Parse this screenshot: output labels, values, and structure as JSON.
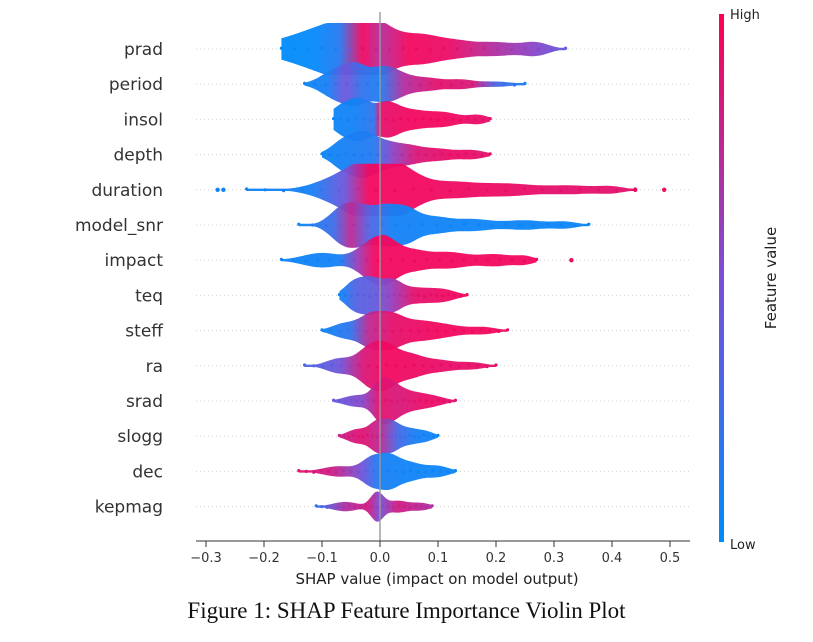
{
  "caption": "Figure 1: SHAP Feature Importance Violin Plot",
  "chart_data": {
    "type": "violin",
    "xlabel": "SHAP value (impact on model output)",
    "xlim": [
      -0.35,
      0.53
    ],
    "xticks": [
      -0.3,
      -0.2,
      -0.1,
      0.0,
      0.1,
      0.2,
      0.3,
      0.4,
      0.5
    ],
    "xtick_labels": [
      "−0.3",
      "−0.2",
      "−0.1",
      "0.0",
      "0.1",
      "0.2",
      "0.3",
      "0.4",
      "0.5"
    ],
    "colorbar": {
      "label": "Feature value",
      "high": "High",
      "low": "Low",
      "high_color": "#ff0052",
      "low_color": "#008bfb"
    },
    "features": [
      {
        "name": "prad",
        "min": -0.17,
        "max": 0.32,
        "outliers": [],
        "blobs": [
          [
            -0.095,
            0.14,
            0.62
          ],
          [
            -0.05,
            0.09,
            0.52
          ],
          [
            -0.02,
            0.05,
            0.4
          ],
          [
            0.03,
            0.08,
            0.3
          ],
          [
            0.08,
            0.05,
            0.3
          ],
          [
            0.13,
            0.05,
            0.24
          ],
          [
            0.2,
            0.07,
            0.26
          ],
          [
            0.27,
            0.04,
            0.22
          ]
        ],
        "colors": [
          [
            -0.17,
            0.0
          ],
          [
            -0.11,
            0.02
          ],
          [
            -0.07,
            0.15
          ],
          [
            -0.03,
            0.95
          ],
          [
            0.0,
            0.72
          ],
          [
            0.05,
            0.95
          ],
          [
            0.12,
            0.92
          ],
          [
            0.2,
            0.7
          ],
          [
            0.27,
            0.55
          ],
          [
            0.32,
            0.4
          ]
        ]
      },
      {
        "name": "period",
        "min": -0.13,
        "max": 0.25,
        "outliers": [],
        "blobs": [
          [
            -0.07,
            0.05,
            0.62
          ],
          [
            -0.04,
            0.03,
            0.4
          ],
          [
            0.0,
            0.04,
            0.52
          ],
          [
            0.03,
            0.04,
            0.32
          ],
          [
            0.08,
            0.05,
            0.24
          ],
          [
            0.14,
            0.04,
            0.16
          ],
          [
            0.2,
            0.05,
            0.1
          ]
        ],
        "colors": [
          [
            -0.13,
            0.05
          ],
          [
            -0.09,
            0.1
          ],
          [
            -0.06,
            0.45
          ],
          [
            -0.03,
            0.2
          ],
          [
            0.0,
            0.12
          ],
          [
            0.04,
            0.7
          ],
          [
            0.1,
            0.9
          ],
          [
            0.16,
            0.85
          ],
          [
            0.2,
            0.3
          ],
          [
            0.25,
            0.1
          ]
        ]
      },
      {
        "name": "insol",
        "min": -0.08,
        "max": 0.19,
        "outliers": [],
        "blobs": [
          [
            -0.06,
            0.04,
            0.6
          ],
          [
            -0.03,
            0.03,
            0.5
          ],
          [
            0.01,
            0.035,
            0.55
          ],
          [
            0.05,
            0.05,
            0.34
          ],
          [
            0.11,
            0.05,
            0.26
          ],
          [
            0.17,
            0.03,
            0.16
          ]
        ],
        "colors": [
          [
            -0.08,
            0.05
          ],
          [
            -0.04,
            0.08
          ],
          [
            -0.01,
            0.2
          ],
          [
            0.0,
            0.9
          ],
          [
            0.05,
            0.95
          ],
          [
            0.12,
            0.95
          ],
          [
            0.19,
            0.9
          ]
        ]
      },
      {
        "name": "depth",
        "min": -0.1,
        "max": 0.19,
        "outliers": [],
        "blobs": [
          [
            -0.06,
            0.04,
            0.58
          ],
          [
            -0.025,
            0.035,
            0.62
          ],
          [
            0.01,
            0.04,
            0.4
          ],
          [
            0.05,
            0.04,
            0.28
          ],
          [
            0.1,
            0.05,
            0.22
          ],
          [
            0.16,
            0.04,
            0.16
          ]
        ],
        "colors": [
          [
            -0.1,
            0.05
          ],
          [
            -0.05,
            0.1
          ],
          [
            -0.01,
            0.15
          ],
          [
            0.02,
            0.55
          ],
          [
            0.06,
            0.85
          ],
          [
            0.12,
            0.92
          ],
          [
            0.19,
            0.9
          ]
        ]
      },
      {
        "name": "duration",
        "min": -0.23,
        "max": 0.44,
        "outliers": [
          -0.28,
          -0.27,
          0.44,
          0.49
        ],
        "blobs": [
          [
            -0.08,
            0.07,
            0.34
          ],
          [
            -0.03,
            0.06,
            0.75
          ],
          [
            0.01,
            0.05,
            0.8
          ],
          [
            0.05,
            0.05,
            0.45
          ],
          [
            0.12,
            0.08,
            0.3
          ],
          [
            0.22,
            0.08,
            0.22
          ],
          [
            0.33,
            0.08,
            0.16
          ],
          [
            0.4,
            0.04,
            0.1
          ]
        ],
        "colors": [
          [
            -0.28,
            0.05
          ],
          [
            -0.12,
            0.08
          ],
          [
            -0.06,
            0.45
          ],
          [
            -0.02,
            0.95
          ],
          [
            0.05,
            0.95
          ],
          [
            0.2,
            0.93
          ],
          [
            0.3,
            0.9
          ],
          [
            0.45,
            0.9
          ]
        ]
      },
      {
        "name": "model_snr",
        "min": -0.14,
        "max": 0.36,
        "outliers": [],
        "blobs": [
          [
            -0.065,
            0.04,
            0.62
          ],
          [
            -0.03,
            0.04,
            0.58
          ],
          [
            0.01,
            0.035,
            0.6
          ],
          [
            0.045,
            0.035,
            0.55
          ],
          [
            0.09,
            0.05,
            0.3
          ],
          [
            0.16,
            0.06,
            0.22
          ],
          [
            0.25,
            0.06,
            0.18
          ],
          [
            0.32,
            0.04,
            0.12
          ]
        ],
        "colors": [
          [
            -0.14,
            0.05
          ],
          [
            -0.08,
            0.25
          ],
          [
            -0.05,
            0.75
          ],
          [
            -0.02,
            0.35
          ],
          [
            0.02,
            0.08
          ],
          [
            0.1,
            0.06
          ],
          [
            0.25,
            0.05
          ],
          [
            0.36,
            0.05
          ]
        ]
      },
      {
        "name": "impact",
        "min": -0.17,
        "max": 0.27,
        "outliers": [
          0.33
        ],
        "blobs": [
          [
            -0.1,
            0.06,
            0.28
          ],
          [
            -0.02,
            0.04,
            0.55
          ],
          [
            0.01,
            0.035,
            0.6
          ],
          [
            0.05,
            0.05,
            0.38
          ],
          [
            0.12,
            0.06,
            0.3
          ],
          [
            0.2,
            0.05,
            0.22
          ],
          [
            0.25,
            0.03,
            0.14
          ]
        ],
        "colors": [
          [
            -0.17,
            0.05
          ],
          [
            -0.07,
            0.08
          ],
          [
            -0.04,
            0.6
          ],
          [
            -0.01,
            0.95
          ],
          [
            0.05,
            0.95
          ],
          [
            0.2,
            0.95
          ],
          [
            0.33,
            0.95
          ]
        ]
      },
      {
        "name": "teq",
        "min": -0.07,
        "max": 0.15,
        "outliers": [],
        "blobs": [
          [
            -0.045,
            0.03,
            0.5
          ],
          [
            -0.015,
            0.03,
            0.58
          ],
          [
            0.02,
            0.03,
            0.5
          ],
          [
            0.06,
            0.05,
            0.28
          ],
          [
            0.11,
            0.04,
            0.2
          ]
        ],
        "colors": [
          [
            -0.07,
            0.05
          ],
          [
            -0.04,
            0.35
          ],
          [
            -0.01,
            0.4
          ],
          [
            0.02,
            0.6
          ],
          [
            0.06,
            0.9
          ],
          [
            0.15,
            0.95
          ]
        ]
      },
      {
        "name": "steff",
        "min": -0.1,
        "max": 0.22,
        "outliers": [],
        "blobs": [
          [
            -0.06,
            0.04,
            0.28
          ],
          [
            -0.015,
            0.035,
            0.58
          ],
          [
            0.02,
            0.035,
            0.5
          ],
          [
            0.06,
            0.05,
            0.3
          ],
          [
            0.11,
            0.06,
            0.22
          ],
          [
            0.18,
            0.04,
            0.12
          ]
        ],
        "colors": [
          [
            -0.1,
            0.05
          ],
          [
            -0.05,
            0.2
          ],
          [
            -0.02,
            0.75
          ],
          [
            0.02,
            0.9
          ],
          [
            0.1,
            0.95
          ],
          [
            0.22,
            0.95
          ]
        ]
      },
      {
        "name": "ra",
        "min": -0.13,
        "max": 0.2,
        "outliers": [],
        "blobs": [
          [
            -0.07,
            0.04,
            0.28
          ],
          [
            -0.02,
            0.035,
            0.6
          ],
          [
            0.01,
            0.035,
            0.68
          ],
          [
            0.05,
            0.04,
            0.4
          ],
          [
            0.1,
            0.05,
            0.22
          ],
          [
            0.16,
            0.04,
            0.12
          ]
        ],
        "colors": [
          [
            -0.13,
            0.3
          ],
          [
            -0.07,
            0.45
          ],
          [
            -0.03,
            0.85
          ],
          [
            0.01,
            0.95
          ],
          [
            0.1,
            0.92
          ],
          [
            0.2,
            0.9
          ]
        ]
      },
      {
        "name": "srad",
        "min": -0.08,
        "max": 0.13,
        "outliers": [],
        "blobs": [
          [
            -0.04,
            0.04,
            0.22
          ],
          [
            0.0,
            0.025,
            0.55
          ],
          [
            0.02,
            0.03,
            0.5
          ],
          [
            0.05,
            0.04,
            0.3
          ],
          [
            0.09,
            0.04,
            0.18
          ]
        ],
        "colors": [
          [
            -0.08,
            0.4
          ],
          [
            -0.03,
            0.55
          ],
          [
            0.0,
            0.9
          ],
          [
            0.03,
            0.85
          ],
          [
            0.08,
            0.92
          ],
          [
            0.13,
            0.9
          ]
        ]
      },
      {
        "name": "slogg",
        "min": -0.07,
        "max": 0.1,
        "outliers": [],
        "blobs": [
          [
            -0.04,
            0.03,
            0.26
          ],
          [
            -0.005,
            0.025,
            0.52
          ],
          [
            0.02,
            0.025,
            0.48
          ],
          [
            0.05,
            0.03,
            0.28
          ],
          [
            0.08,
            0.025,
            0.16
          ]
        ],
        "colors": [
          [
            -0.07,
            0.8
          ],
          [
            -0.03,
            0.88
          ],
          [
            0.0,
            0.75
          ],
          [
            0.03,
            0.3
          ],
          [
            0.06,
            0.1
          ],
          [
            0.1,
            0.05
          ]
        ]
      },
      {
        "name": "dec",
        "min": -0.14,
        "max": 0.13,
        "outliers": [],
        "blobs": [
          [
            -0.07,
            0.05,
            0.2
          ],
          [
            -0.015,
            0.03,
            0.48
          ],
          [
            0.015,
            0.03,
            0.52
          ],
          [
            0.05,
            0.04,
            0.34
          ],
          [
            0.1,
            0.035,
            0.2
          ]
        ],
        "colors": [
          [
            -0.14,
            0.9
          ],
          [
            -0.08,
            0.8
          ],
          [
            -0.03,
            0.45
          ],
          [
            0.0,
            0.1
          ],
          [
            0.05,
            0.06
          ],
          [
            0.13,
            0.05
          ]
        ]
      },
      {
        "name": "kepmag",
        "min": -0.11,
        "max": 0.09,
        "outliers": [],
        "blobs": [
          [
            -0.06,
            0.04,
            0.18
          ],
          [
            -0.005,
            0.02,
            0.55
          ],
          [
            0.03,
            0.03,
            0.22
          ],
          [
            0.07,
            0.03,
            0.14
          ]
        ],
        "colors": [
          [
            -0.11,
            0.2
          ],
          [
            -0.06,
            0.7
          ],
          [
            -0.02,
            0.82
          ],
          [
            0.0,
            0.5
          ],
          [
            0.03,
            0.82
          ],
          [
            0.09,
            0.7
          ]
        ]
      }
    ]
  }
}
